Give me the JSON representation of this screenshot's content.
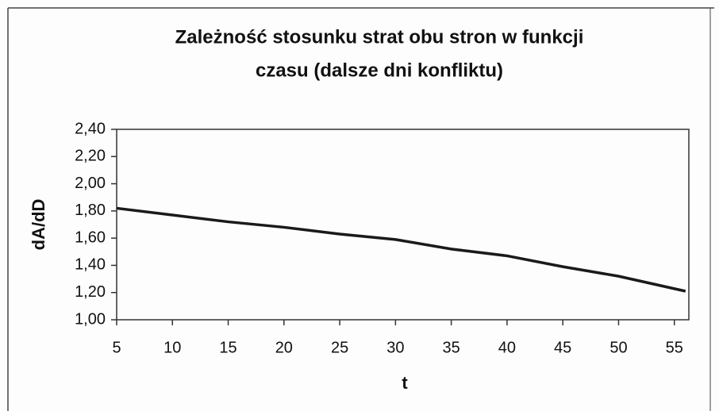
{
  "chart_data": {
    "type": "line",
    "title": [
      "Zależność stosunku strat obu stron w funkcji",
      "czasu (dalsze dni konfliktu)"
    ],
    "xlabel": "t",
    "ylabel": "dA/dD",
    "x": [
      5,
      10,
      15,
      20,
      25,
      30,
      35,
      40,
      45,
      50,
      56
    ],
    "series": [
      {
        "name": "dA/dD",
        "color": "#1a1a1a",
        "values": [
          1.82,
          1.77,
          1.72,
          1.68,
          1.63,
          1.59,
          1.52,
          1.47,
          1.39,
          1.32,
          1.21
        ]
      }
    ],
    "xlim": [
      5,
      56.3
    ],
    "xticks": [
      5,
      10,
      15,
      20,
      25,
      30,
      35,
      40,
      45,
      50,
      55
    ],
    "ylim": [
      1.0,
      2.4
    ],
    "yticks": [
      {
        "value": 1.0,
        "label": "1,00"
      },
      {
        "value": 1.2,
        "label": "1,20"
      },
      {
        "value": 1.4,
        "label": "1,40"
      },
      {
        "value": 1.6,
        "label": "1,60"
      },
      {
        "value": 1.8,
        "label": "1,80"
      },
      {
        "value": 2.0,
        "label": "2,00"
      },
      {
        "value": 2.2,
        "label": "2,20"
      },
      {
        "value": 2.4,
        "label": "2,40"
      }
    ],
    "grid": false
  }
}
